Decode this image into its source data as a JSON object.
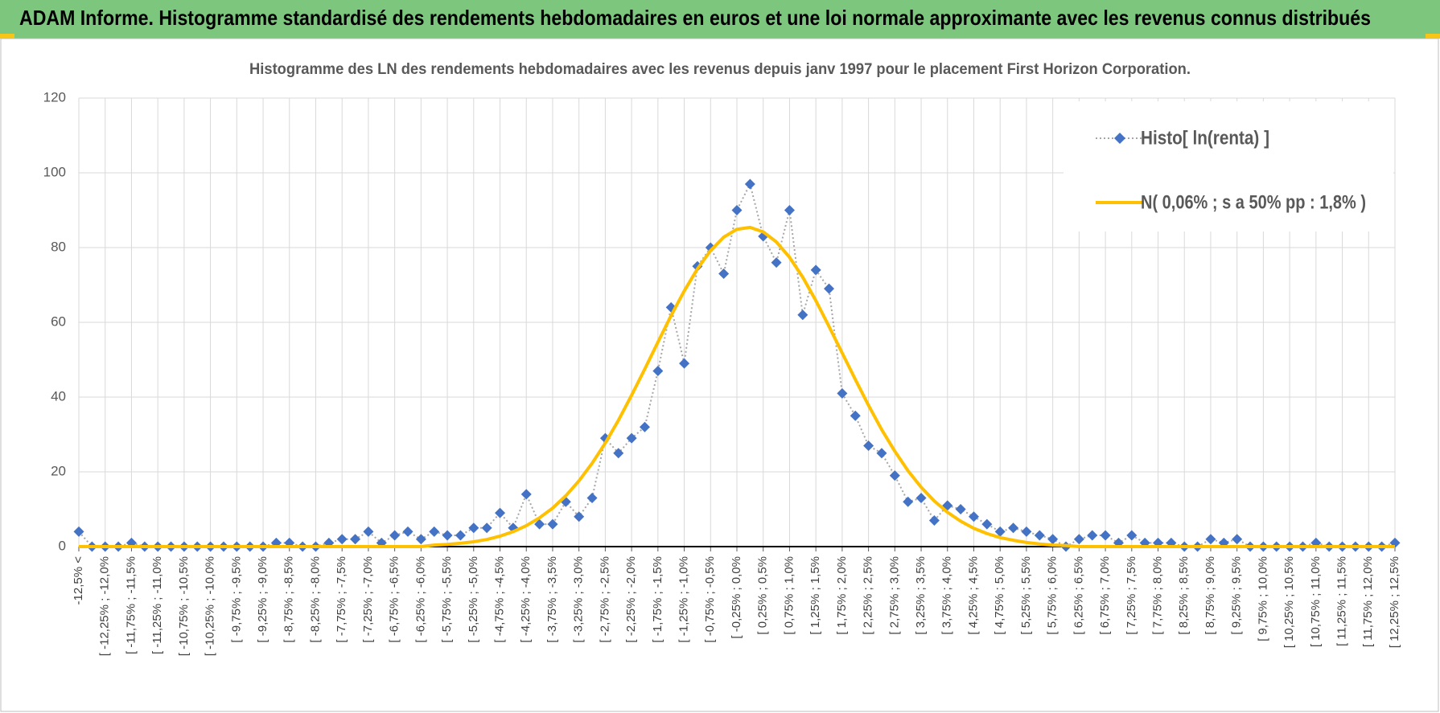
{
  "header": {
    "title": "ADAM Informe. Histogramme standardisé des rendements hebdomadaires en euros et une loi normale approximante avec les revenus connus distribués"
  },
  "chart_data": {
    "type": "line",
    "title": "Histogramme  des LN des rendements hebdomadaires avec les revenus depuis janv 1997 pour le placement First  Horizon Corporation.",
    "categories": [
      "-12,5% <",
      null,
      "[ -12,25% ; -12,0%",
      null,
      "[ -11,75% ; -11,5%",
      null,
      "[ -11,25% ; -11,0%",
      null,
      "[ -10,75% ; -10,5%",
      null,
      "[ -10,25% ; -10,0%",
      null,
      "[ -9,75% ; -9,5%",
      null,
      "[ -9,25% ; -9,0%",
      null,
      "[ -8,75% ; -8,5%",
      null,
      "[ -8,25% ; -8,0%",
      null,
      "[ -7,75% ; -7,5%",
      null,
      "[ -7,25% ; -7,0%",
      null,
      "[ -6,75% ; -6,5%",
      null,
      "[ -6,25% ; -6,0%",
      null,
      "[ -5,75% ; -5,5%",
      null,
      "[ -5,25% ; -5,0%",
      null,
      "[ -4,75% ; -4,5%",
      null,
      "[ -4,25% ; -4,0%",
      null,
      "[ -3,75% ; -3,5%",
      null,
      "[ -3,25% ; -3,0%",
      null,
      "[ -2,75% ; -2,5%",
      null,
      "[ -2,25% ; -2,0%",
      null,
      "[ -1,75% ; -1,5%",
      null,
      "[ -1,25% ; -1,0%",
      null,
      "[ -0,75% ; -0,5%",
      null,
      "[ -0,25% ; 0,0%",
      null,
      "[ 0,25% ; 0,5%",
      null,
      "[ 0,75% ; 1,0%",
      null,
      "[ 1,25% ; 1,5%",
      null,
      "[ 1,75% ; 2,0%",
      null,
      "[ 2,25% ; 2,5%",
      null,
      "[ 2,75% ; 3,0%",
      null,
      "[ 3,25% ; 3,5%",
      null,
      "[ 3,75% ; 4,0%",
      null,
      "[ 4,25% ; 4,5%",
      null,
      "[ 4,75% ; 5,0%",
      null,
      "[ 5,25% ; 5,5%",
      null,
      "[ 5,75% ; 6,0%",
      null,
      "[ 6,25% ; 6,5%",
      null,
      "[ 6,75% ; 7,0%",
      null,
      "[ 7,25% ; 7,5%",
      null,
      "[ 7,75% ; 8,0%",
      null,
      "[ 8,25% ; 8,5%",
      null,
      "[ 8,75% ; 9,0%",
      null,
      "[ 9,25% ; 9,5%",
      null,
      "[ 9,75% ; 10,0%",
      null,
      "[ 10,25% ; 10,5%",
      null,
      "[ 10,75% ; 11,0%",
      null,
      "[ 11,25% ; 11,5%",
      null,
      "[ 11,75% ; 12,0%",
      null,
      "[ 12,25% ; 12,5%"
    ],
    "series": [
      {
        "name": "Histo[ ln(renta) ]",
        "color": "#4472c4",
        "values": [
          4,
          0,
          0,
          0,
          1,
          0,
          0,
          0,
          0,
          0,
          0,
          0,
          0,
          0,
          0,
          1,
          1,
          0,
          0,
          1,
          2,
          2,
          4,
          1,
          3,
          4,
          2,
          4,
          3,
          3,
          5,
          5,
          9,
          5,
          14,
          6,
          6,
          12,
          8,
          13,
          29,
          25,
          29,
          32,
          47,
          64,
          49,
          75,
          80,
          73,
          90,
          97,
          83,
          76,
          90,
          62,
          74,
          69,
          41,
          35,
          27,
          25,
          19,
          12,
          13,
          7,
          11,
          10,
          8,
          6,
          4,
          5,
          4,
          3,
          2,
          0,
          2,
          3,
          3,
          1,
          3,
          1,
          1,
          1,
          0,
          0,
          2,
          1,
          2,
          0,
          0,
          0,
          0,
          0,
          1,
          0,
          0,
          0,
          0,
          0,
          1
        ]
      },
      {
        "name": "N( 0,06% ; s a 50% pp : 1,8% )",
        "color": "#ffc000",
        "values": [
          0,
          0,
          0,
          0,
          0,
          0,
          0,
          0,
          0,
          0,
          0,
          0,
          0,
          0,
          0,
          0,
          0,
          0,
          0,
          0,
          0,
          0,
          0,
          0,
          0,
          0,
          0,
          0.4,
          0.6,
          0.9,
          1.3,
          1.9,
          2.8,
          4.0,
          5.6,
          7.7,
          10.3,
          13.6,
          17.6,
          22.3,
          27.7,
          33.8,
          40.5,
          47.5,
          54.7,
          61.8,
          68.4,
          74.3,
          79.2,
          82.8,
          84.9,
          85.4,
          84.2,
          81.5,
          77.4,
          72.1,
          65.8,
          58.9,
          51.8,
          44.7,
          37.8,
          31.3,
          25.5,
          20.3,
          15.9,
          12.2,
          9.2,
          6.8,
          4.9,
          3.5,
          2.4,
          1.7,
          1.1,
          0.7,
          0.4,
          0.3,
          0,
          0,
          0,
          0,
          0,
          0,
          0,
          0,
          0,
          0,
          0,
          0,
          0,
          0,
          0,
          0,
          0,
          0,
          0,
          0,
          0,
          0,
          0,
          0,
          0
        ]
      }
    ],
    "ylim": [
      0,
      120
    ],
    "yticks": [
      0,
      20,
      40,
      60,
      80,
      100,
      120
    ],
    "grid": true,
    "legend": "top-right"
  }
}
